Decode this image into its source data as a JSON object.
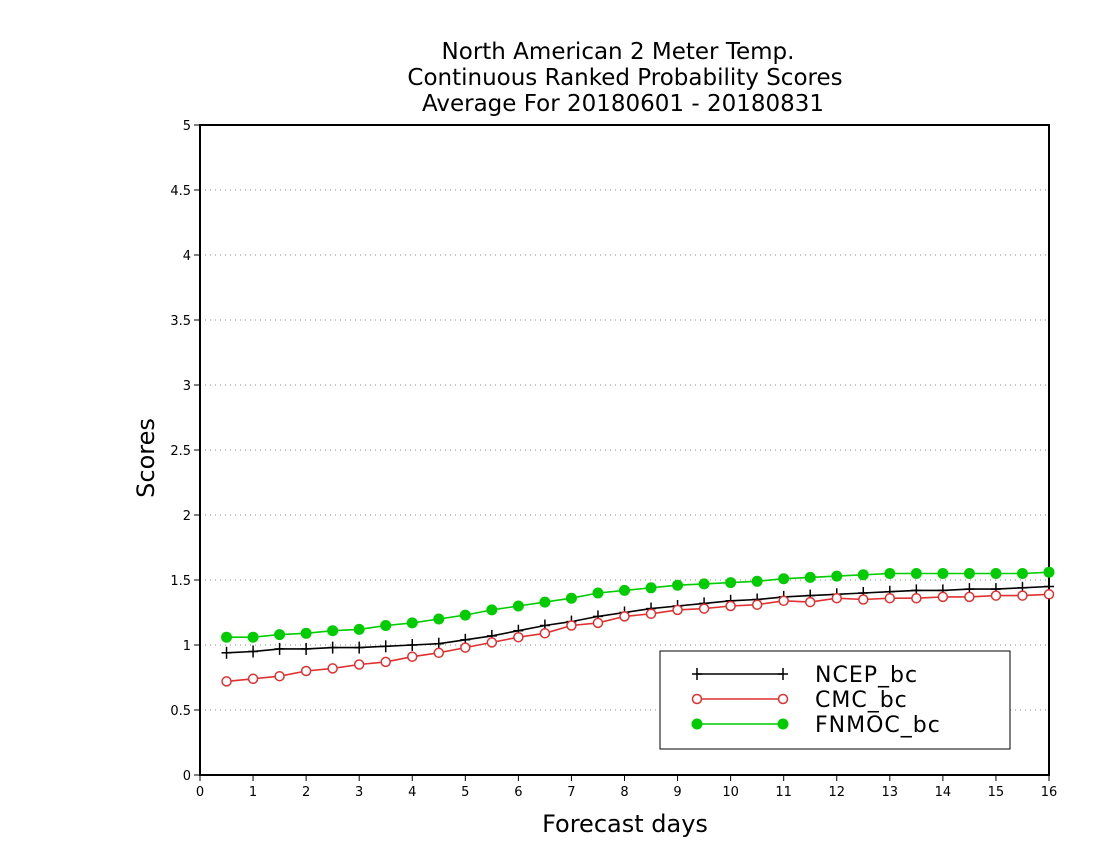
{
  "chart_data": {
    "type": "line",
    "title_lines": [
      "North American 2 Meter Temp.",
      "Continuous Ranked Probability Scores",
      "Average For 20180601 - 20180831"
    ],
    "xlabel": "Forecast days",
    "ylabel": "Scores",
    "xlim": [
      0,
      16
    ],
    "ylim": [
      0,
      5
    ],
    "xticks": [
      "0",
      "1",
      "2",
      "3",
      "4",
      "5",
      "6",
      "7",
      "8",
      "9",
      "10",
      "11",
      "12",
      "13",
      "14",
      "15",
      "16"
    ],
    "yticks": [
      "0",
      "0.5",
      "1",
      "1.5",
      "2",
      "2.5",
      "3",
      "3.5",
      "4",
      "4.5",
      "5"
    ],
    "grid": "horizontal dotted",
    "legend_position": "bottom-right",
    "x": [
      0.5,
      1,
      1.5,
      2,
      2.5,
      3,
      3.5,
      4,
      4.5,
      5,
      5.5,
      6,
      6.5,
      7,
      7.5,
      8,
      8.5,
      9,
      9.5,
      10,
      10.5,
      11,
      11.5,
      12,
      12.5,
      13,
      13.5,
      14,
      14.5,
      15,
      15.5,
      16
    ],
    "series": [
      {
        "name": "NCEP_bc",
        "color": "#000000",
        "marker": "plus",
        "values": [
          0.94,
          0.95,
          0.97,
          0.97,
          0.98,
          0.98,
          0.99,
          1.0,
          1.01,
          1.04,
          1.07,
          1.11,
          1.15,
          1.18,
          1.22,
          1.25,
          1.28,
          1.3,
          1.32,
          1.34,
          1.35,
          1.37,
          1.38,
          1.39,
          1.4,
          1.41,
          1.42,
          1.42,
          1.43,
          1.43,
          1.44,
          1.45
        ]
      },
      {
        "name": "CMC_bc",
        "color": "#e03030",
        "marker": "open-circle",
        "values": [
          0.72,
          0.74,
          0.76,
          0.8,
          0.82,
          0.85,
          0.87,
          0.91,
          0.94,
          0.98,
          1.02,
          1.06,
          1.09,
          1.15,
          1.17,
          1.22,
          1.24,
          1.27,
          1.28,
          1.3,
          1.31,
          1.34,
          1.33,
          1.36,
          1.35,
          1.36,
          1.36,
          1.37,
          1.37,
          1.38,
          1.38,
          1.39
        ]
      },
      {
        "name": "FNMOC_bc",
        "color": "#00cc00",
        "marker": "filled-circle",
        "values": [
          1.06,
          1.06,
          1.08,
          1.09,
          1.11,
          1.12,
          1.15,
          1.17,
          1.2,
          1.23,
          1.27,
          1.3,
          1.33,
          1.36,
          1.4,
          1.42,
          1.44,
          1.46,
          1.47,
          1.48,
          1.49,
          1.51,
          1.52,
          1.53,
          1.54,
          1.55,
          1.55,
          1.55,
          1.55,
          1.55,
          1.55,
          1.56
        ]
      }
    ]
  }
}
